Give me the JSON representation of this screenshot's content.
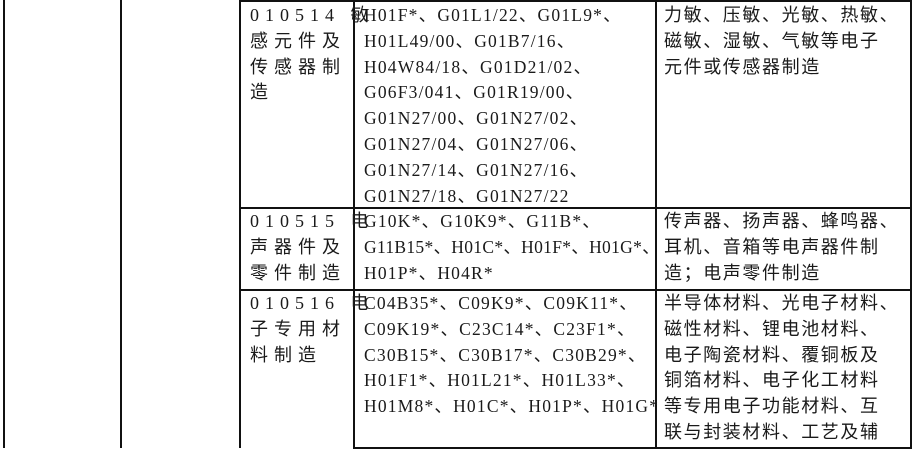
{
  "rows": [
    {
      "category": [
        "010514 敏",
        "感元件及",
        "传感器制",
        "造"
      ],
      "codes": [
        "H01F*、G01L1/22、G01L9*、",
        "H01L49/00、G01B7/16、",
        "H04W84/18、G01D21/02、",
        "G06F3/041、G01R19/00、",
        "G01N27/00、G01N27/02、",
        "G01N27/04、G01N27/06、",
        "G01N27/14、G01N27/16、",
        "G01N27/18、G01N27/22"
      ],
      "description": [
        "力敏、压敏、光敏、热敏、",
        "磁敏、湿敏、气敏等电子",
        "元件或传感器制造"
      ]
    },
    {
      "category": [
        "010515 电",
        "声器件及",
        "零件制造"
      ],
      "codes": [
        "G10K*、G10K9*、G11B*、",
        "G11B15*、H01C*、H01F*、H01G*、",
        "H01P*、H04R*"
      ],
      "description": [
        "传声器、扬声器、蜂鸣器、",
        "耳机、音箱等电声器件制",
        "造；电声零件制造"
      ]
    },
    {
      "category": [
        "010516 电",
        "子专用材",
        "料制造"
      ],
      "codes": [
        "C04B35*、C09K9*、C09K11*、",
        "C09K19*、C23C14*、C23F1*、",
        "C30B15*、C30B17*、C30B29*、",
        "H01F1*、H01L21*、H01L33*、",
        "H01M8*、H01C*、H01P*、H01G*"
      ],
      "description": [
        "半导体材料、光电子材料、",
        "磁性材料、锂电池材料、",
        "电子陶瓷材料、覆铜板及",
        "铜箔材料、电子化工材料",
        "等专用电子功能材料、互",
        "联与封装材料、工艺及辅"
      ]
    }
  ]
}
